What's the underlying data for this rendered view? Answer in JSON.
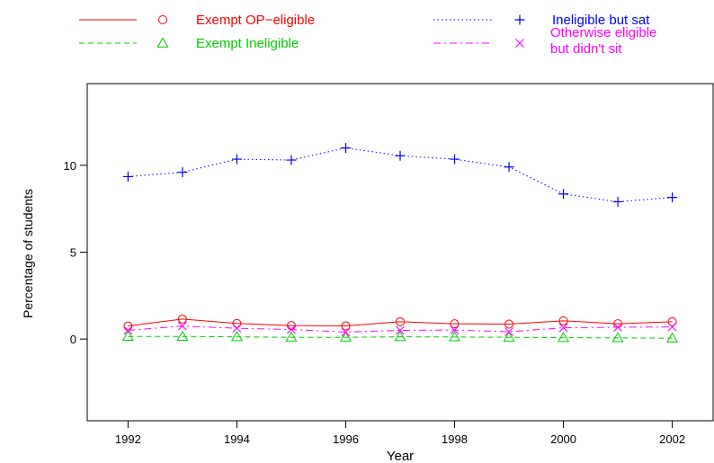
{
  "chart_data": {
    "type": "line",
    "title": "",
    "xlabel": "Year",
    "ylabel": "Percentage of students",
    "xlim": [
      1991.25,
      2002.75
    ],
    "ylim": [
      -4.7,
      14.7
    ],
    "x_ticks": [
      1992,
      1994,
      1996,
      1998,
      2000,
      2002
    ],
    "y_ticks": [
      0,
      5,
      10
    ],
    "grid": false,
    "legend_position": "top",
    "x": [
      1992,
      1993,
      1994,
      1995,
      1996,
      1997,
      1998,
      1999,
      2000,
      2001,
      2002
    ],
    "series": [
      {
        "name": "Exempt OP−eligible",
        "color": "#ff0000",
        "line_style": "solid",
        "marker": "circle",
        "values": [
          0.75,
          1.15,
          0.9,
          0.78,
          0.76,
          1.0,
          0.88,
          0.86,
          1.05,
          0.88,
          1.0
        ]
      },
      {
        "name": "Exempt Ineligible",
        "color": "#00cd00",
        "line_style": "dashed",
        "marker": "triangle",
        "values": [
          0.15,
          0.15,
          0.13,
          0.1,
          0.1,
          0.13,
          0.12,
          0.1,
          0.08,
          0.07,
          0.05
        ]
      },
      {
        "name": "Ineligible but sat",
        "color": "#0000ff",
        "line_style": "dotted",
        "marker": "plus",
        "values": [
          9.35,
          9.6,
          10.35,
          10.3,
          11.0,
          10.55,
          10.35,
          9.9,
          8.35,
          7.9,
          8.15
        ]
      },
      {
        "name": "Otherwise eligible but didn't sit",
        "name_lines": [
          "Otherwise eligible",
          " but didn't sit"
        ],
        "color": "#ff00ff",
        "line_style": "dotdash",
        "marker": "x",
        "values": [
          0.5,
          0.75,
          0.62,
          0.55,
          0.4,
          0.5,
          0.52,
          0.42,
          0.65,
          0.68,
          0.7
        ]
      }
    ]
  }
}
